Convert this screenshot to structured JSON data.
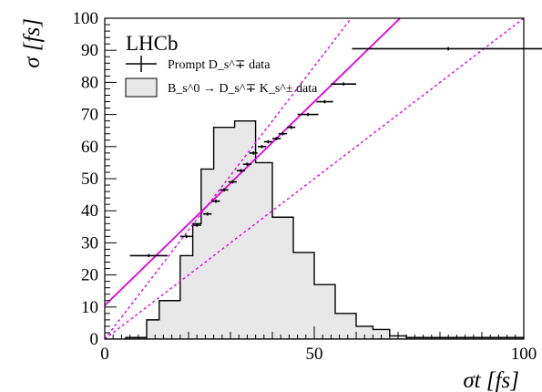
{
  "chart_data": {
    "type": "line",
    "title": "LHCb",
    "xlabel": "σt [fs]",
    "ylabel": "σ [fs]",
    "xlim": [
      0,
      100
    ],
    "ylim": [
      0,
      100
    ],
    "x_ticks": [
      0,
      50,
      100
    ],
    "y_ticks": [
      0,
      10,
      20,
      30,
      40,
      50,
      60,
      70,
      80,
      90,
      100
    ],
    "legend_position": "top-left",
    "grid": false,
    "histogram": {
      "name": "B_s^0 → D_s^∓ K_s^± data",
      "bin_edges": [
        0,
        5,
        10,
        13,
        18,
        21,
        23,
        26,
        31,
        36,
        40,
        45,
        50,
        55,
        60,
        64,
        68,
        72,
        100
      ],
      "values": [
        0,
        0.5,
        6,
        12,
        26,
        36,
        53,
        66,
        68,
        55,
        38,
        27,
        17,
        8,
        4,
        3,
        1,
        0.5
      ]
    },
    "prompt_points": {
      "name": "Prompt D_s^∓ data",
      "points": [
        {
          "x": 10.5,
          "xerr": 4.5,
          "y": 26
        },
        {
          "x": 19.5,
          "xerr": 1.5,
          "y": 32
        },
        {
          "x": 22,
          "xerr": 1,
          "y": 35.5
        },
        {
          "x": 24.5,
          "xerr": 1,
          "y": 39
        },
        {
          "x": 26.5,
          "xerr": 1,
          "y": 43
        },
        {
          "x": 28.5,
          "xerr": 1,
          "y": 46.5
        },
        {
          "x": 30.5,
          "xerr": 1,
          "y": 49
        },
        {
          "x": 32.5,
          "xerr": 1,
          "y": 52.5
        },
        {
          "x": 34,
          "xerr": 1,
          "y": 54.5
        },
        {
          "x": 35.5,
          "xerr": 1,
          "y": 58
        },
        {
          "x": 37.5,
          "xerr": 1,
          "y": 60
        },
        {
          "x": 39,
          "xerr": 1,
          "y": 61.5
        },
        {
          "x": 41,
          "xerr": 1,
          "y": 62.5
        },
        {
          "x": 42.5,
          "xerr": 1,
          "y": 64
        },
        {
          "x": 44.5,
          "xerr": 1,
          "y": 66
        },
        {
          "x": 48.5,
          "xerr": 2.5,
          "y": 70
        },
        {
          "x": 52.5,
          "xerr": 2,
          "y": 74
        },
        {
          "x": 57,
          "xerr": 3,
          "y": 79.5
        },
        {
          "x": 82,
          "xerr": 23,
          "y": 90.5
        }
      ]
    },
    "fit_line": {
      "y0": 10.5,
      "slope": 1.27,
      "color": "#e000e0"
    },
    "fit_band": {
      "upper_slope": 1.7,
      "lower_slope": 1.0,
      "color": "#e000e0"
    }
  }
}
